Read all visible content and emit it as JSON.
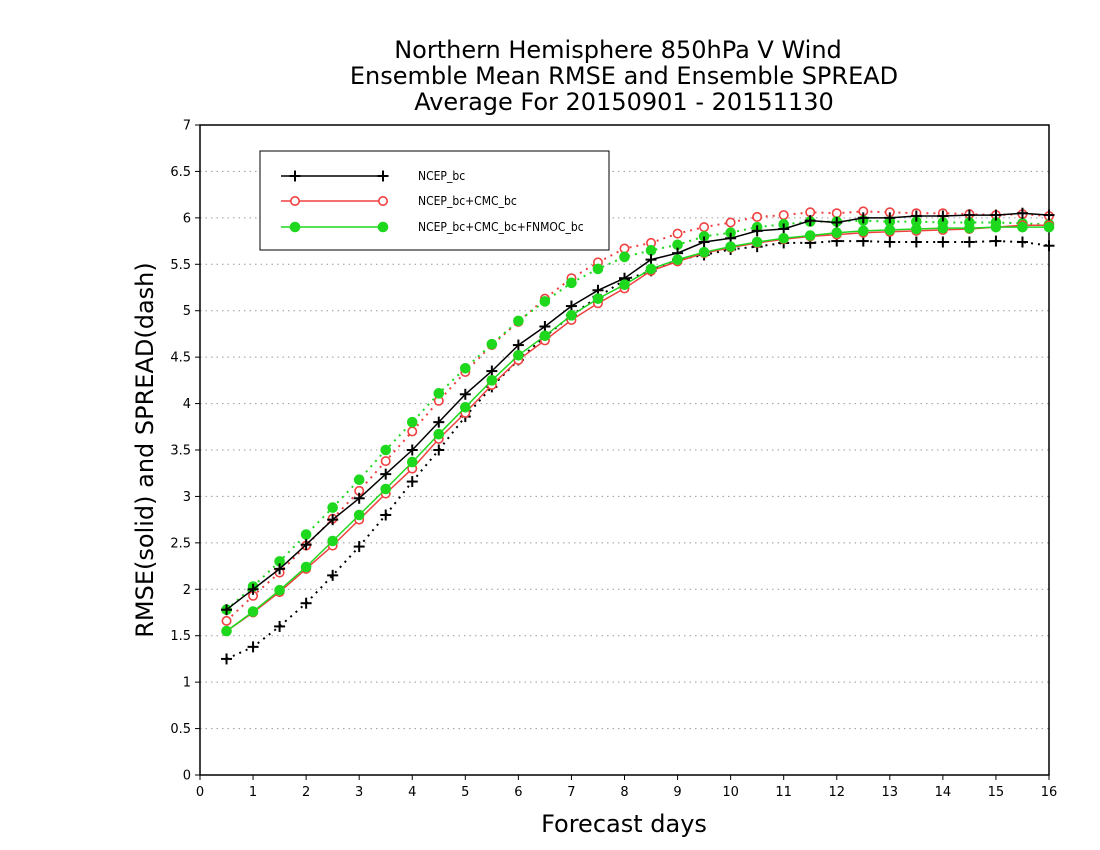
{
  "chart_data": {
    "type": "line",
    "title": [
      "Northern Hemisphere 850hPa V Wind",
      "Ensemble Mean RMSE and Ensemble SPREAD",
      "Average For 20150901 - 20151130"
    ],
    "xlabel": "Forecast days",
    "ylabel": "RMSE(solid) and SPREAD(dash)",
    "xlim": [
      0,
      16
    ],
    "ylim": [
      0,
      7
    ],
    "xticks": [
      "0",
      "1",
      "2",
      "3",
      "4",
      "5",
      "6",
      "7",
      "8",
      "9",
      "10",
      "11",
      "12",
      "13",
      "14",
      "15",
      "16"
    ],
    "yticks": [
      "0",
      "0.5",
      "1",
      "1.5",
      "2",
      "2.5",
      "3",
      "3.5",
      "4",
      "4.5",
      "5",
      "5.5",
      "6",
      "6.5",
      "7"
    ],
    "grid": "horizontal dotted",
    "legend_position": "top-left",
    "x": [
      0.5,
      1,
      1.5,
      2,
      2.5,
      3,
      3.5,
      4,
      4.5,
      5,
      5.5,
      6,
      6.5,
      7,
      7.5,
      8,
      8.5,
      9,
      9.5,
      10,
      10.5,
      11,
      11.5,
      12,
      12.5,
      13,
      13.5,
      14,
      14.5,
      15,
      15.5,
      16
    ],
    "series": [
      {
        "name": "NCEP_bc",
        "color": "#000000",
        "marker": "plus",
        "rmse": [
          1.78,
          2.0,
          2.22,
          2.48,
          2.75,
          2.98,
          3.24,
          3.5,
          3.8,
          4.1,
          4.35,
          4.63,
          4.83,
          5.05,
          5.22,
          5.35,
          5.55,
          5.62,
          5.74,
          5.78,
          5.86,
          5.88,
          5.97,
          5.95,
          6.0,
          6.0,
          6.02,
          6.02,
          6.03,
          6.03,
          6.05,
          6.03
        ],
        "spread": [
          1.25,
          1.38,
          1.6,
          1.85,
          2.15,
          2.46,
          2.8,
          3.16,
          3.5,
          3.86,
          4.18,
          4.47,
          4.72,
          4.95,
          5.15,
          5.33,
          5.43,
          5.55,
          5.6,
          5.66,
          5.69,
          5.73,
          5.73,
          5.75,
          5.75,
          5.74,
          5.74,
          5.74,
          5.74,
          5.75,
          5.74,
          5.7
        ]
      },
      {
        "name": "NCEP_bc+CMC_bc",
        "color": "#f04040",
        "marker": "open-circle",
        "rmse": [
          1.55,
          1.75,
          1.97,
          2.22,
          2.47,
          2.75,
          3.03,
          3.3,
          3.62,
          3.9,
          4.2,
          4.47,
          4.68,
          4.9,
          5.08,
          5.24,
          5.43,
          5.53,
          5.62,
          5.68,
          5.73,
          5.77,
          5.8,
          5.82,
          5.84,
          5.85,
          5.86,
          5.87,
          5.88,
          5.9,
          5.92,
          5.92
        ],
        "spread": [
          1.66,
          1.93,
          2.18,
          2.47,
          2.76,
          3.06,
          3.38,
          3.7,
          4.03,
          4.34,
          4.63,
          4.88,
          5.13,
          5.35,
          5.52,
          5.67,
          5.73,
          5.83,
          5.9,
          5.95,
          6.01,
          6.03,
          6.06,
          6.05,
          6.07,
          6.06,
          6.05,
          6.05,
          6.04,
          6.03,
          6.04,
          6.02
        ]
      },
      {
        "name": "NCEP_bc+CMC_bc+FNMOC_bc",
        "color": "#1ed81e",
        "marker": "filled-circle",
        "rmse": [
          1.55,
          1.76,
          1.99,
          2.24,
          2.52,
          2.8,
          3.08,
          3.37,
          3.67,
          3.96,
          4.25,
          4.52,
          4.73,
          4.95,
          5.13,
          5.28,
          5.45,
          5.55,
          5.63,
          5.69,
          5.74,
          5.78,
          5.81,
          5.84,
          5.86,
          5.87,
          5.88,
          5.89,
          5.89,
          5.9,
          5.9,
          5.9
        ],
        "spread": [
          1.78,
          2.03,
          2.3,
          2.59,
          2.88,
          3.18,
          3.5,
          3.8,
          4.11,
          4.38,
          4.64,
          4.89,
          5.1,
          5.3,
          5.45,
          5.58,
          5.65,
          5.71,
          5.8,
          5.84,
          5.9,
          5.93,
          5.96,
          5.96,
          5.97,
          5.96,
          5.96,
          5.95,
          5.95,
          5.95,
          5.94,
          5.93
        ]
      }
    ]
  }
}
